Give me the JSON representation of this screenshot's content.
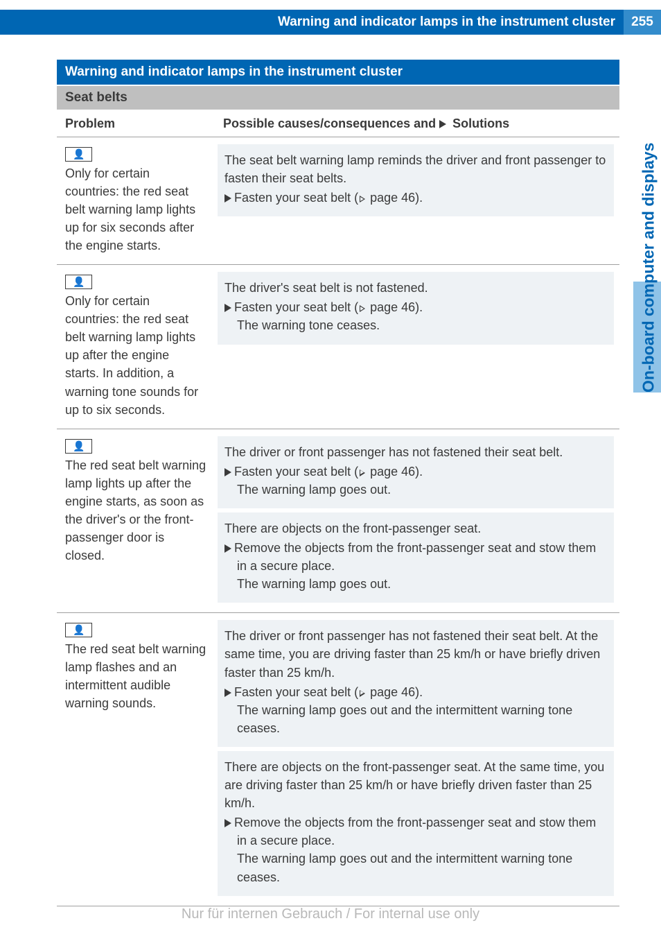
{
  "page_number": "255",
  "header_title": "Warning and indicator lamps in the instrument cluster",
  "side_tab": "On-board computer and displays",
  "section_title": "Warning and indicator lamps in the instrument cluster",
  "subsection_title": "Seat belts",
  "col_header_problem": "Problem",
  "col_header_solution_prefix": "Possible causes/consequences and ",
  "col_header_solution_suffix": " Solutions",
  "seatbelt_icon": "👤",
  "rows": [
    {
      "problem": "Only for certain countries: the red seat belt warning lamp lights up for six seconds after the engine starts.",
      "blocks": [
        {
          "cause": "The seat belt warning lamp reminds the driver and front passenger to fasten their seat belts.",
          "action": "Fasten your seat belt (",
          "page_ref": " page 46).",
          "result": ""
        }
      ]
    },
    {
      "problem": "Only for certain countries: the red seat belt warning lamp lights up after the engine starts. In addition, a warning tone sounds for up to six seconds.",
      "blocks": [
        {
          "cause": "The driver's seat belt is not fastened.",
          "action": "Fasten your seat belt (",
          "page_ref": " page 46).",
          "result": "The warning tone ceases."
        }
      ]
    },
    {
      "problem": "The red seat belt warning lamp lights up after the engine starts, as soon as the driver's or the front-passenger door is closed.",
      "blocks": [
        {
          "cause": "The driver or front passenger has not fastened their seat belt.",
          "action": "Fasten your seat belt (",
          "page_ref": " page 46).",
          "result": "The warning lamp goes out."
        },
        {
          "cause": "There are objects on the front-passenger seat.",
          "action": "Remove the objects from the front-passenger seat and stow them in a secure place.",
          "page_ref": "",
          "result": "The warning lamp goes out."
        }
      ]
    },
    {
      "problem": "The red seat belt warning lamp flashes and an intermittent audible warning sounds.",
      "blocks": [
        {
          "cause": "The driver or front passenger has not fastened their seat belt. At the same time, you are driving faster than 25 km/h or have briefly driven faster than 25 km/h.",
          "action": "Fasten your seat belt (",
          "page_ref": " page 46).",
          "result": "The warning lamp goes out and the intermittent warning tone ceases."
        },
        {
          "cause": "There are objects on the front-passenger seat. At the same time, you are driving faster than 25 km/h or have briefly driven faster than 25 km/h.",
          "action": "Remove the objects from the front-passenger seat and stow them in a secure place.",
          "page_ref": "",
          "result": "The warning lamp goes out and the intermittent warning tone ceases."
        }
      ]
    }
  ],
  "footer_text": "Nur für internen Gebrauch / For internal use only",
  "colors": {
    "primary_blue": "#0066b3",
    "light_blue": "#338ccc",
    "tab_blue": "#8fc3e8",
    "gray_banner": "#bfbfbf",
    "block_bg": "#eef2f5",
    "text": "#3a3a3a",
    "footer_gray": "#b8b8b8"
  }
}
